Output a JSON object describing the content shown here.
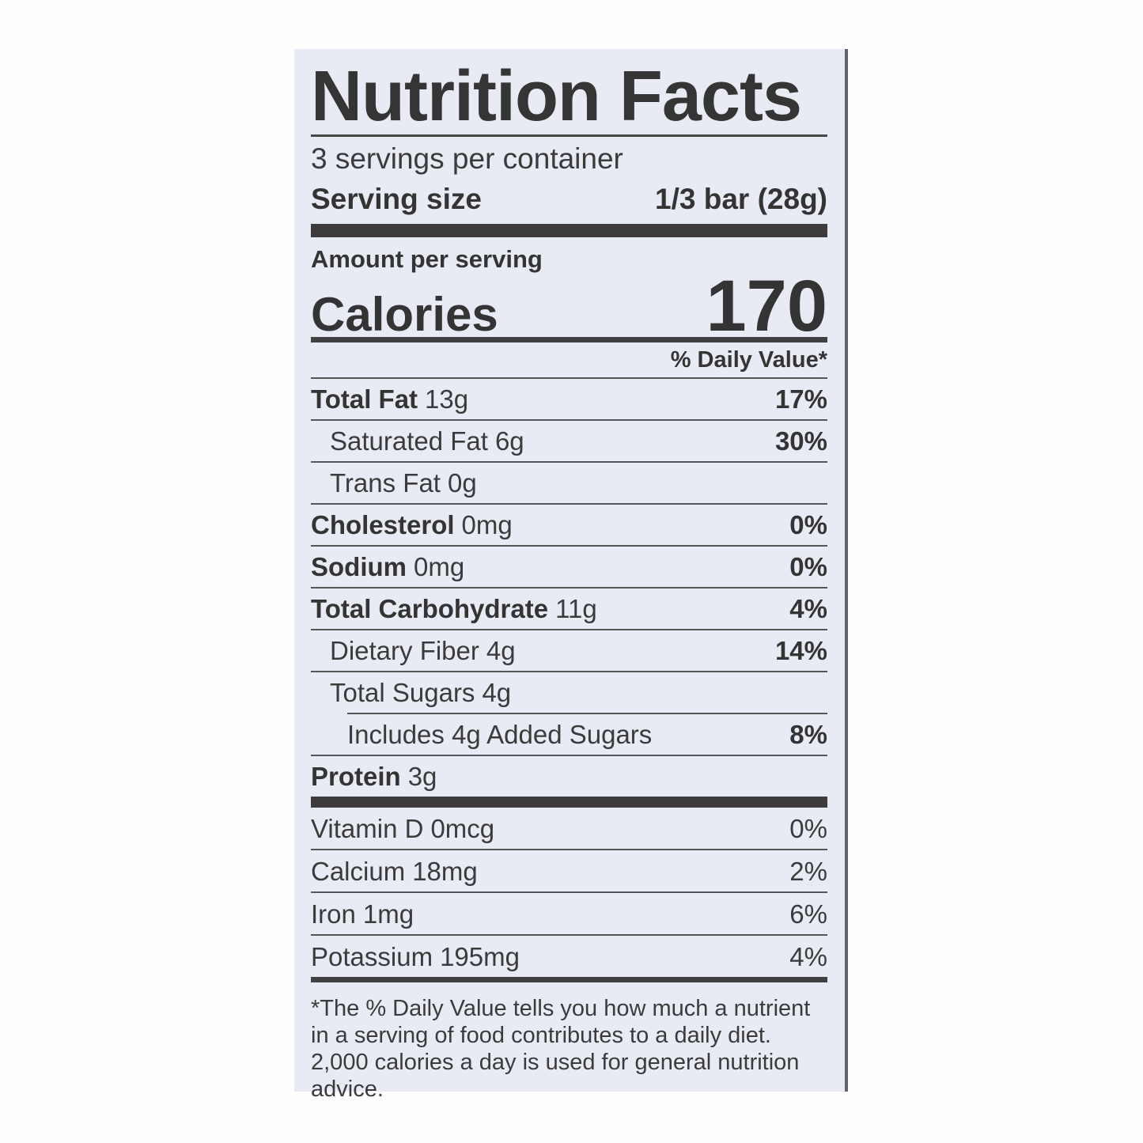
{
  "label": {
    "title": "Nutrition Facts",
    "servings_per_container": "3 servings per container",
    "serving_size_label": "Serving size",
    "serving_size_value": "1/3 bar (28g)",
    "amount_per_serving": "Amount per serving",
    "calories_label": "Calories",
    "calories_value": "170",
    "daily_value_header": "% Daily Value*",
    "nutrients": [
      {
        "name": "Total Fat",
        "amount": "13g",
        "dv": "17%"
      },
      {
        "name": "Saturated Fat",
        "amount": "6g",
        "dv": "30%"
      },
      {
        "name": "Trans Fat",
        "amount": "0g",
        "dv": ""
      },
      {
        "name": "Cholesterol",
        "amount": "0mg",
        "dv": "0%"
      },
      {
        "name": "Sodium",
        "amount": "0mg",
        "dv": "0%"
      },
      {
        "name": "Total Carbohydrate",
        "amount": "11g",
        "dv": "4%"
      },
      {
        "name": "Dietary Fiber",
        "amount": "4g",
        "dv": "14%"
      },
      {
        "name": "Total Sugars",
        "amount": "4g",
        "dv": ""
      },
      {
        "name": "Includes 4g Added Sugars",
        "amount": "",
        "dv": "8%"
      },
      {
        "name": "Protein",
        "amount": "3g",
        "dv": ""
      }
    ],
    "micronutrients": [
      {
        "name": "Vitamin D",
        "amount": "0mcg",
        "dv": "0%"
      },
      {
        "name": "Calcium",
        "amount": "18mg",
        "dv": "2%"
      },
      {
        "name": "Iron",
        "amount": "1mg",
        "dv": "6%"
      },
      {
        "name": "Potassium",
        "amount": "195mg",
        "dv": "4%"
      }
    ],
    "footnote": "*The % Daily Value tells you how much a nutrient in a serving of food contributes to a daily diet. 2,000 calories a day is used for general nutrition advice.",
    "colors": {
      "label_background": "#e9ebf4",
      "text": "#3b3b3b",
      "rules": "#555555",
      "thick_bars": "#3d3b3c",
      "page_background": "#fefefe"
    }
  }
}
